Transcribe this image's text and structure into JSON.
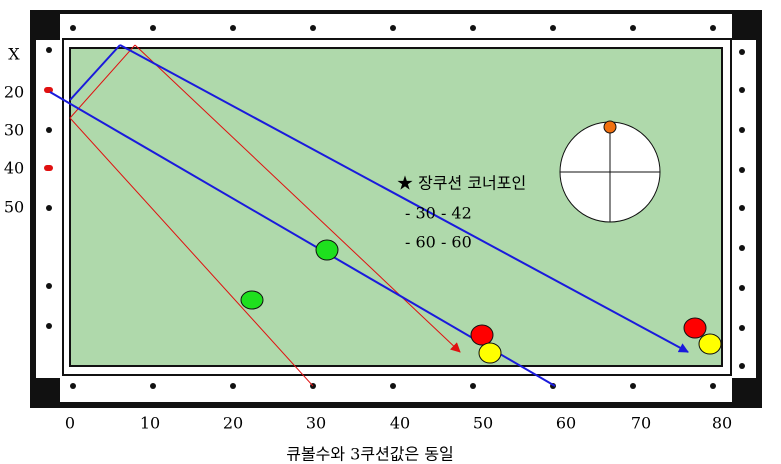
{
  "left_labels": [
    "X",
    "20",
    "30",
    "40",
    "50"
  ],
  "bottom_labels": [
    "0",
    "10",
    "20",
    "30",
    "40",
    "50",
    "60",
    "70",
    "80"
  ],
  "note": {
    "title": "★ 장쿠션 코너포인",
    "lines": [
      "- 30 - 42",
      "- 60 - 60"
    ]
  },
  "caption": "큐볼수와 3쿠션값은 동일"
}
